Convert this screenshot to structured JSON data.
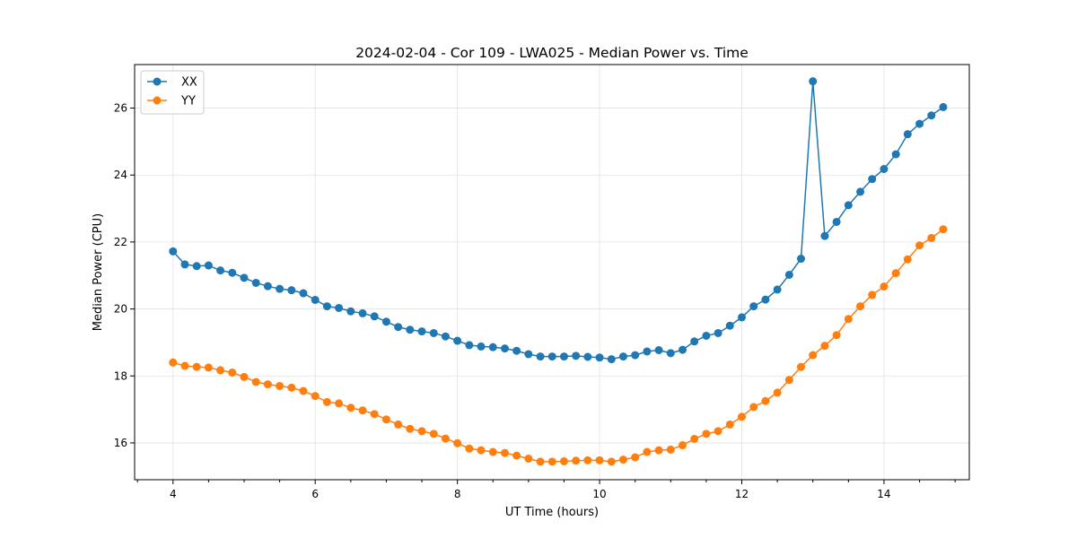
{
  "chart_data": {
    "type": "line",
    "title": "2024-02-04 - Cor 109 - LWA025 - Median Power vs. Time",
    "xlabel": "UT Time (hours)",
    "ylabel": "Median Power (CPU)",
    "xlim": [
      3.46,
      15.2
    ],
    "ylim": [
      14.9,
      27.3
    ],
    "xticks": [
      4,
      6,
      8,
      10,
      12,
      14
    ],
    "xtick_labels": [
      "4",
      "6",
      "8",
      "10",
      "12",
      "14"
    ],
    "yticks": [
      16,
      18,
      20,
      22,
      24,
      26
    ],
    "ytick_labels": [
      "16",
      "18",
      "20",
      "22",
      "24",
      "26"
    ],
    "grid": true,
    "legend_position": "top-left",
    "x": [
      4.0,
      4.167,
      4.333,
      4.5,
      4.667,
      4.833,
      5.0,
      5.167,
      5.333,
      5.5,
      5.667,
      5.833,
      6.0,
      6.167,
      6.333,
      6.5,
      6.667,
      6.833,
      7.0,
      7.167,
      7.333,
      7.5,
      7.667,
      7.833,
      8.0,
      8.167,
      8.333,
      8.5,
      8.667,
      8.833,
      9.0,
      9.167,
      9.333,
      9.5,
      9.667,
      9.833,
      10.0,
      10.167,
      10.333,
      10.5,
      10.667,
      10.833,
      11.0,
      11.167,
      11.333,
      11.5,
      11.667,
      11.833,
      12.0,
      12.167,
      12.333,
      12.5,
      12.667,
      12.833,
      13.0,
      13.167,
      13.333,
      13.5,
      13.667,
      13.833,
      14.0,
      14.167,
      14.333,
      14.5,
      14.667,
      14.833
    ],
    "series": [
      {
        "name": "XX",
        "color": "#1f77b4",
        "values": [
          21.72,
          21.33,
          21.28,
          21.3,
          21.15,
          21.08,
          20.93,
          20.78,
          20.68,
          20.6,
          20.56,
          20.47,
          20.27,
          20.08,
          20.03,
          19.93,
          19.87,
          19.78,
          19.62,
          19.46,
          19.38,
          19.33,
          19.28,
          19.18,
          19.05,
          18.92,
          18.88,
          18.86,
          18.82,
          18.75,
          18.65,
          18.58,
          18.58,
          18.58,
          18.6,
          18.57,
          18.55,
          18.5,
          18.58,
          18.62,
          18.73,
          18.77,
          18.68,
          18.78,
          19.03,
          19.2,
          19.28,
          19.5,
          19.75,
          20.08,
          20.28,
          20.58,
          21.02,
          21.5,
          26.8,
          22.18,
          22.6,
          23.1,
          23.5,
          23.88,
          24.18,
          24.62,
          25.22,
          25.53,
          25.78,
          26.03
        ]
      },
      {
        "name": "YY",
        "color": "#ff7f0e",
        "values": [
          18.4,
          18.3,
          18.27,
          18.25,
          18.17,
          18.1,
          17.97,
          17.82,
          17.75,
          17.7,
          17.65,
          17.55,
          17.4,
          17.22,
          17.18,
          17.05,
          16.97,
          16.86,
          16.7,
          16.55,
          16.42,
          16.35,
          16.27,
          16.13,
          15.99,
          15.83,
          15.78,
          15.73,
          15.7,
          15.62,
          15.53,
          15.44,
          15.44,
          15.45,
          15.47,
          15.48,
          15.48,
          15.44,
          15.5,
          15.57,
          15.73,
          15.78,
          15.8,
          15.93,
          16.12,
          16.27,
          16.35,
          16.55,
          16.78,
          17.07,
          17.25,
          17.5,
          17.88,
          18.27,
          18.62,
          18.9,
          19.22,
          19.7,
          20.08,
          20.42,
          20.67,
          21.07,
          21.48,
          21.9,
          22.12,
          22.38
        ]
      }
    ]
  }
}
